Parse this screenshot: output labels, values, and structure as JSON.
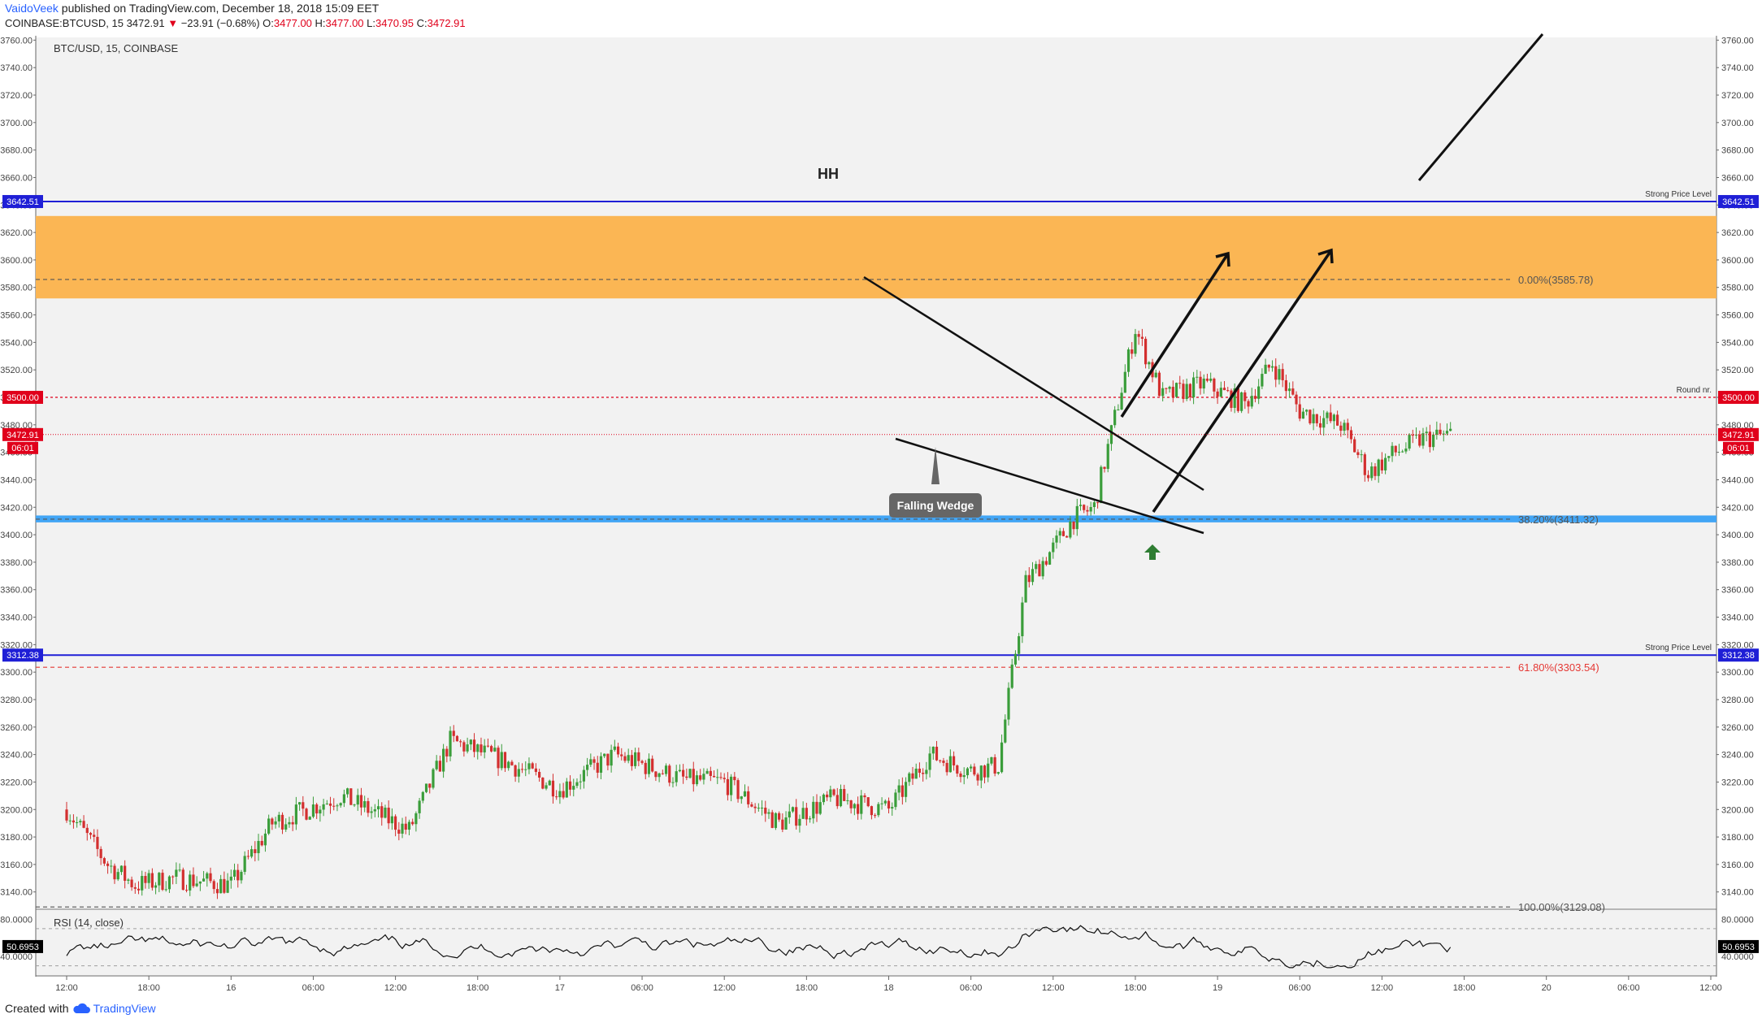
{
  "header": {
    "author": "VaidoVeek",
    "published_text": "published on TradingView.com, December 18, 2018 15:09 EET",
    "symbol_line": "COINBASE:BTCUSD, 15",
    "last_price": "3472.91",
    "change_arrow": "▼",
    "change": "−23.91 (−0.68%)",
    "o_label": "O:",
    "o_value": "3477.00",
    "h_label": "H:",
    "h_value": "3477.00",
    "l_label": "L:",
    "l_value": "3470.95",
    "c_label": "C:",
    "c_value": "3472.91"
  },
  "footer": {
    "created_with": "Created with",
    "brand": "TradingView",
    "logo_icon": "tradingview-cloud-icon"
  },
  "chart_data": {
    "type": "candlestick",
    "legend": "BTC/USD, 15, COINBASE",
    "ylim": [
      3128,
      3762
    ],
    "y_ticks": [
      "3760.00",
      "3740.00",
      "3720.00",
      "3700.00",
      "3680.00",
      "3660.00",
      "3640.00",
      "3620.00",
      "3600.00",
      "3580.00",
      "3560.00",
      "3540.00",
      "3520.00",
      "3500.00",
      "3480.00",
      "3460.00",
      "3440.00",
      "3420.00",
      "3400.00",
      "3380.00",
      "3360.00",
      "3340.00",
      "3320.00",
      "3300.00",
      "3280.00",
      "3260.00",
      "3240.00",
      "3220.00",
      "3200.00",
      "3180.00",
      "3160.00",
      "3140.00"
    ],
    "x_ticks": [
      "12:00",
      "18:00",
      "16",
      "06:00",
      "12:00",
      "18:00",
      "17",
      "06:00",
      "12:00",
      "18:00",
      "18",
      "06:00",
      "12:00",
      "18:00",
      "19",
      "06:00",
      "12:00",
      "18:00",
      "20",
      "06:00",
      "12:00"
    ],
    "price_path": {
      "times": [
        0,
        3,
        5,
        8,
        12,
        15,
        20,
        25,
        28,
        32,
        36,
        40,
        45,
        48,
        52,
        56,
        60,
        63,
        66,
        68,
        70,
        72,
        73.5,
        75,
        78,
        80,
        83,
        86,
        88,
        90,
        93,
        95,
        97,
        99,
        101
      ],
      "closes": [
        3200,
        3160,
        3145,
        3150,
        3145,
        3190,
        3210,
        3185,
        3250,
        3235,
        3215,
        3240,
        3222,
        3220,
        3190,
        3208,
        3200,
        3240,
        3228,
        3232,
        3365,
        3390,
        3412,
        3420,
        3550,
        3500,
        3510,
        3495,
        3525,
        3490,
        3480,
        3445,
        3460,
        3470,
        3473
      ]
    },
    "levels": [
      {
        "label": "Strong Price Level",
        "value": 3642.51,
        "value_label": "3642.51",
        "color": "#1f1fd6"
      },
      {
        "label": "Round nr.",
        "value": 3500.0,
        "value_label": "3500.00",
        "color": "#e0001b"
      },
      {
        "label": "Strong Price Level",
        "value": 3312.38,
        "value_label": "3312.38",
        "color": "#1f1fd6"
      }
    ],
    "last_price_tag": {
      "value": 3472.91,
      "label": "3472.91",
      "countdown": "06:01"
    },
    "fib_levels": [
      {
        "label": "0.00%(3585.78)",
        "value": 3585.78
      },
      {
        "label": "38.20%(3411.32)",
        "value": 3411.32
      },
      {
        "label": "61.80%(3303.54)",
        "value": 3303.54
      },
      {
        "label": "100.00%(3129.08)",
        "value": 3129.08
      }
    ],
    "zones": [
      {
        "name": "supply-zone",
        "from": 3572,
        "to": 3632,
        "color": "#fbb654"
      },
      {
        "name": "support-zone",
        "from": 3409,
        "to": 3414,
        "color": "#42a5f5"
      }
    ],
    "annotations": {
      "hh": "HH",
      "pattern": "Falling Wedge"
    },
    "rsi": {
      "label": "RSI (14, close)",
      "value": "50.6953",
      "ylim": [
        20,
        90
      ],
      "levels": [
        {
          "label": "80.0000",
          "value": 80
        },
        {
          "label": "40.0000",
          "value": 40
        }
      ],
      "bands": [
        70,
        30
      ]
    }
  }
}
